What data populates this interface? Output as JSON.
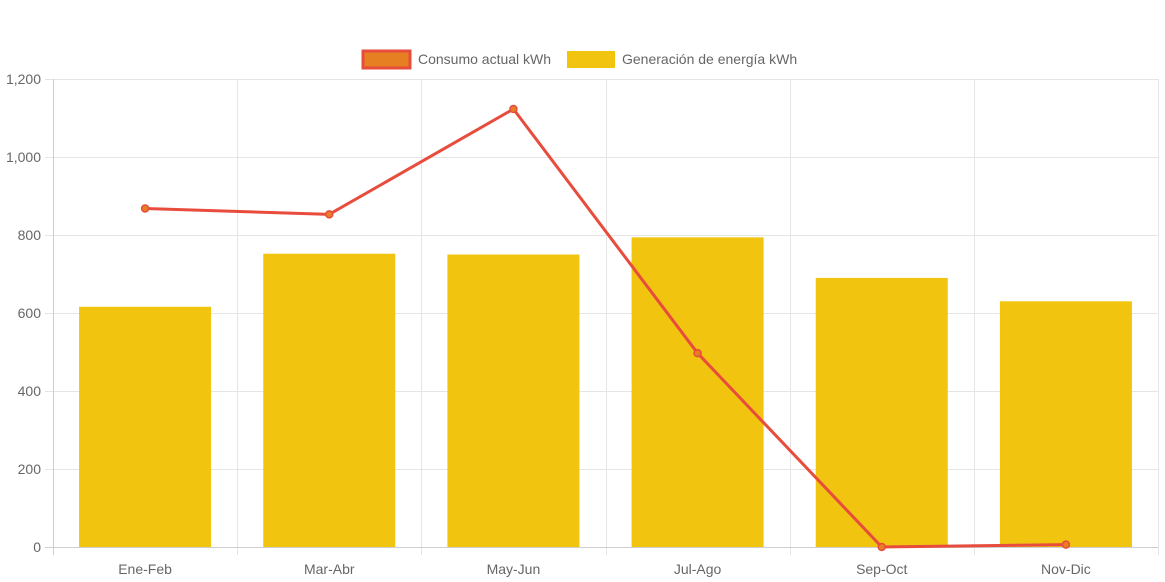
{
  "chart_data": {
    "type": "bar",
    "title": "",
    "xlabel": "",
    "ylabel": "",
    "ylim": [
      0,
      1200
    ],
    "yticks": [
      0,
      200,
      400,
      600,
      800,
      1000,
      1200
    ],
    "ytick_labels": [
      "0",
      "200",
      "400",
      "600",
      "800",
      "1,000",
      "1,200"
    ],
    "categories": [
      "Ene-Feb",
      "Mar-Abr",
      "May-Jun",
      "Jul-Ago",
      "Sep-Oct",
      "Nov-Dic"
    ],
    "grid": true,
    "legend_position": "top-center",
    "series": [
      {
        "name": "Consumo actual kWh",
        "type": "line",
        "values": [
          868,
          853,
          1123,
          497,
          0,
          6
        ],
        "color": "#e74c3c",
        "point_color": "#e67e22"
      },
      {
        "name": "Generación de energía kWh",
        "type": "bar",
        "values": [
          616,
          752,
          750,
          794,
          690,
          630
        ],
        "color": "#f1c40f"
      }
    ]
  }
}
